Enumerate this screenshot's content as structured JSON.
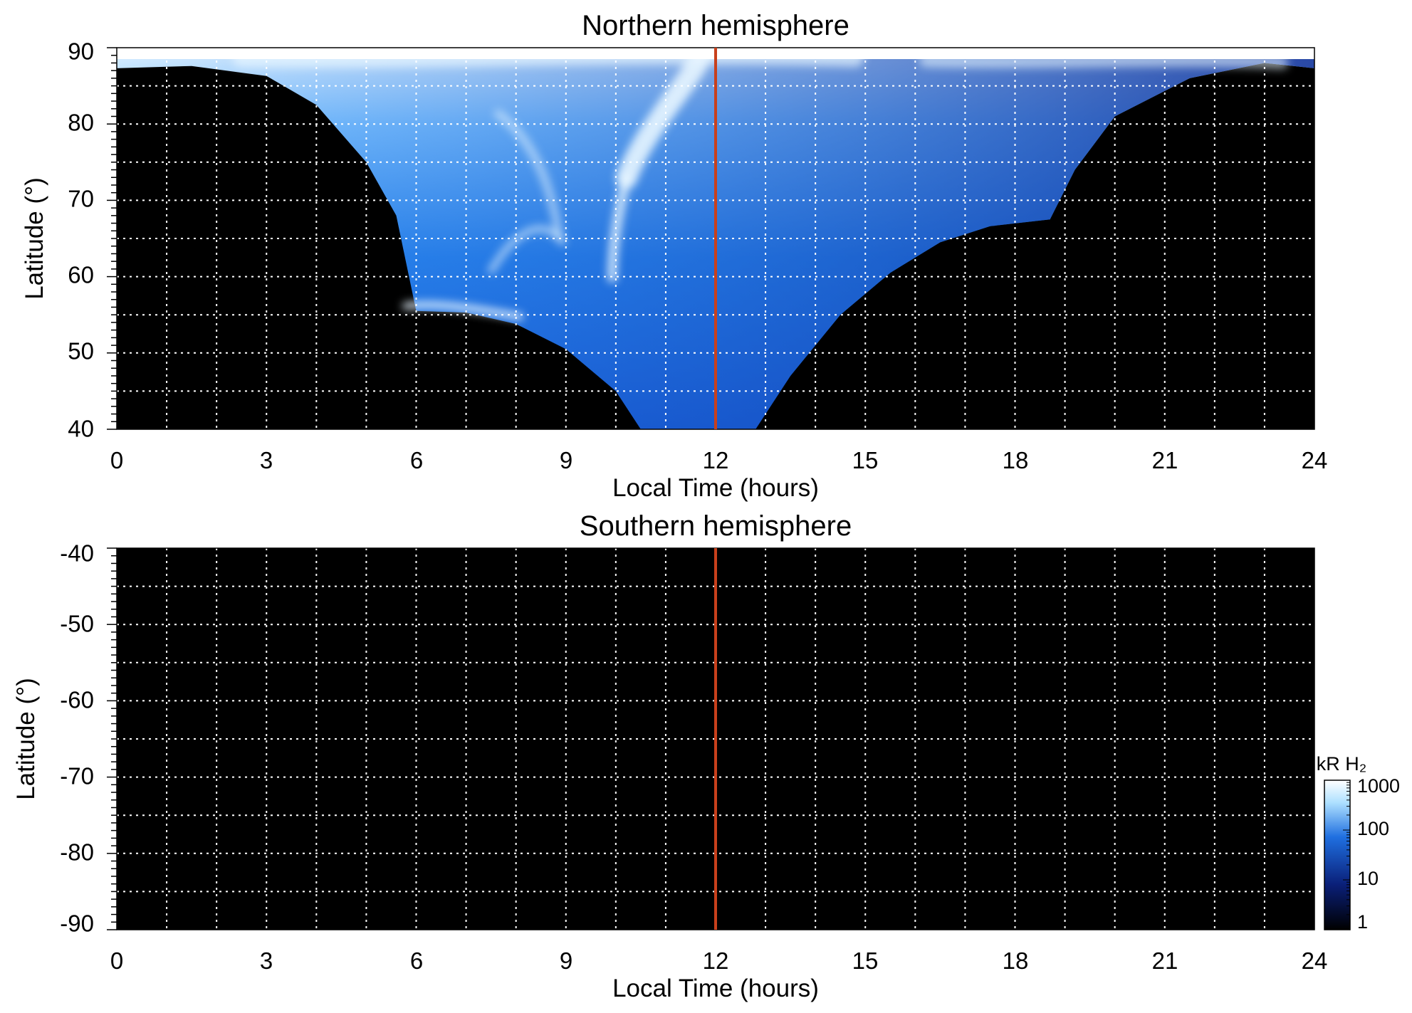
{
  "chart_data": [
    {
      "type": "heatmap",
      "title": "Northern hemisphere",
      "xlabel": "Local Time (hours)",
      "ylabel": "Latitude (°)",
      "xlim": [
        0,
        24
      ],
      "ylim": [
        40,
        90
      ],
      "xticks": [
        "0",
        "3",
        "6",
        "9",
        "12",
        "15",
        "18",
        "21",
        "24"
      ],
      "yticks": [
        "40",
        "50",
        "60",
        "70",
        "80",
        "90"
      ],
      "grid": true,
      "reference_line": {
        "x": 12,
        "color": "#c8401c"
      },
      "coverage_boundary": {
        "morning": [
          {
            "lt": 0.0,
            "lat": 87.3
          },
          {
            "lt": 1.5,
            "lat": 87.6
          },
          {
            "lt": 3.0,
            "lat": 86.3
          },
          {
            "lt": 4.0,
            "lat": 82.5
          },
          {
            "lt": 5.0,
            "lat": 75.0
          },
          {
            "lt": 5.6,
            "lat": 68.0
          },
          {
            "lt": 6.0,
            "lat": 55.5
          },
          {
            "lt": 7.0,
            "lat": 55.3
          },
          {
            "lt": 8.0,
            "lat": 53.8
          },
          {
            "lt": 9.0,
            "lat": 50.5
          },
          {
            "lt": 10.0,
            "lat": 45.0
          },
          {
            "lt": 10.5,
            "lat": 40.0
          }
        ],
        "afternoon": [
          {
            "lt": 12.8,
            "lat": 40.0
          },
          {
            "lt": 13.5,
            "lat": 47.0
          },
          {
            "lt": 14.5,
            "lat": 55.0
          },
          {
            "lt": 15.5,
            "lat": 60.5
          },
          {
            "lt": 16.5,
            "lat": 64.5
          },
          {
            "lt": 17.5,
            "lat": 66.6
          },
          {
            "lt": 18.7,
            "lat": 67.5
          },
          {
            "lt": 19.2,
            "lat": 74.0
          },
          {
            "lt": 20.0,
            "lat": 81.0
          },
          {
            "lt": 21.5,
            "lat": 86.0
          },
          {
            "lt": 23.0,
            "lat": 88.0
          },
          {
            "lt": 24.0,
            "lat": 87.3
          }
        ]
      }
    },
    {
      "type": "heatmap",
      "title": "Southern hemisphere",
      "xlabel": "Local Time (hours)",
      "ylabel": "Latitude (°)",
      "xlim": [
        0,
        24
      ],
      "ylim": [
        -90,
        -40
      ],
      "xticks": [
        "0",
        "3",
        "6",
        "9",
        "12",
        "15",
        "18",
        "21",
        "24"
      ],
      "yticks": [
        "-40",
        "-50",
        "-60",
        "-70",
        "-80",
        "-90"
      ],
      "grid": true,
      "reference_line": {
        "x": 12,
        "color": "#c8401c"
      },
      "values": "no data (entire panel black)"
    }
  ],
  "colorbar": {
    "title": "kR H₂",
    "scale": "log",
    "range": [
      1,
      1000
    ],
    "ticks": [
      "1000",
      "100",
      "10",
      "1"
    ],
    "colors": [
      "#000000",
      "#0a1f78",
      "#1f6fe0",
      "#aee0ff",
      "#ffffff"
    ]
  }
}
